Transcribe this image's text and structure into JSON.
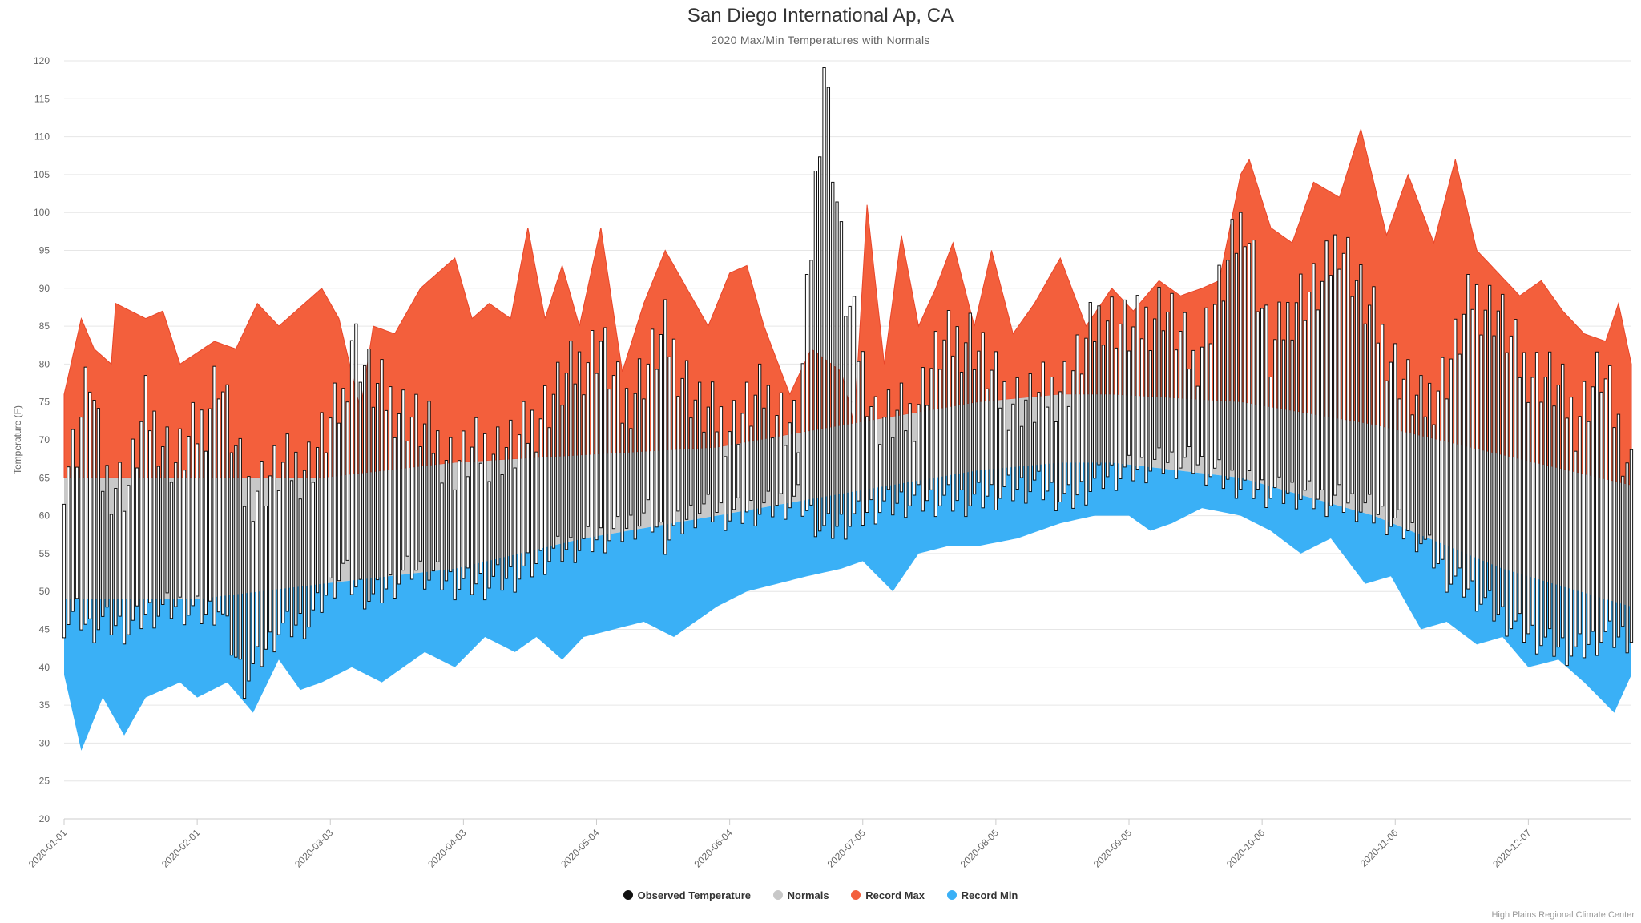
{
  "chart_data": {
    "type": "area",
    "title": "San Diego International Ap, CA",
    "subtitle": "2020 Max/Min Temperatures with Normals",
    "ylabel": "Temperature (F)",
    "xlabel": "",
    "ylim": [
      20,
      120
    ],
    "yticks": [
      20,
      25,
      30,
      35,
      40,
      45,
      50,
      55,
      60,
      65,
      70,
      75,
      80,
      85,
      90,
      95,
      100,
      105,
      110,
      115,
      120
    ],
    "xrange": [
      "2020-01-01",
      "2020-12-31"
    ],
    "xticks": [
      "2020-01-01",
      "2020-02-01",
      "2020-03-03",
      "2020-04-03",
      "2020-05-04",
      "2020-06-04",
      "2020-07-05",
      "2020-08-05",
      "2020-09-05",
      "2020-10-06",
      "2020-11-06",
      "2020-12-07"
    ],
    "grid": true,
    "legend_position": "bottom-center",
    "series": [
      {
        "name": "Record Max",
        "color": "#f35f3c",
        "points": [
          [
            "2020-01-01",
            76
          ],
          [
            "2020-01-05",
            86
          ],
          [
            "2020-01-08",
            82
          ],
          [
            "2020-01-12",
            80
          ],
          [
            "2020-01-13",
            88
          ],
          [
            "2020-01-20",
            86
          ],
          [
            "2020-01-24",
            87
          ],
          [
            "2020-01-28",
            80
          ],
          [
            "2020-02-05",
            83
          ],
          [
            "2020-02-10",
            82
          ],
          [
            "2020-02-15",
            88
          ],
          [
            "2020-02-20",
            85
          ],
          [
            "2020-02-24",
            87
          ],
          [
            "2020-03-01",
            90
          ],
          [
            "2020-03-05",
            86
          ],
          [
            "2020-03-10",
            74
          ],
          [
            "2020-03-13",
            85
          ],
          [
            "2020-03-18",
            84
          ],
          [
            "2020-03-24",
            90
          ],
          [
            "2020-04-01",
            94
          ],
          [
            "2020-04-05",
            86
          ],
          [
            "2020-04-09",
            88
          ],
          [
            "2020-04-14",
            86
          ],
          [
            "2020-04-18",
            98
          ],
          [
            "2020-04-22",
            86
          ],
          [
            "2020-04-26",
            93
          ],
          [
            "2020-04-30",
            85
          ],
          [
            "2020-05-05",
            98
          ],
          [
            "2020-05-10",
            79
          ],
          [
            "2020-05-15",
            88
          ],
          [
            "2020-05-20",
            95
          ],
          [
            "2020-05-25",
            90
          ],
          [
            "2020-05-30",
            85
          ],
          [
            "2020-06-04",
            92
          ],
          [
            "2020-06-08",
            93
          ],
          [
            "2020-06-12",
            85
          ],
          [
            "2020-06-18",
            76
          ],
          [
            "2020-06-23",
            82
          ],
          [
            "2020-06-30",
            79
          ],
          [
            "2020-07-03",
            72
          ],
          [
            "2020-07-06",
            101
          ],
          [
            "2020-07-10",
            80
          ],
          [
            "2020-07-14",
            97
          ],
          [
            "2020-07-18",
            85
          ],
          [
            "2020-07-22",
            90
          ],
          [
            "2020-07-26",
            96
          ],
          [
            "2020-07-31",
            85
          ],
          [
            "2020-08-04",
            95
          ],
          [
            "2020-08-09",
            84
          ],
          [
            "2020-08-14",
            88
          ],
          [
            "2020-08-20",
            94
          ],
          [
            "2020-08-26",
            85
          ],
          [
            "2020-09-01",
            90
          ],
          [
            "2020-09-06",
            87
          ],
          [
            "2020-09-12",
            91
          ],
          [
            "2020-09-17",
            89
          ],
          [
            "2020-09-22",
            90
          ],
          [
            "2020-09-26",
            91
          ],
          [
            "2020-10-01",
            105
          ],
          [
            "2020-10-03",
            107
          ],
          [
            "2020-10-08",
            98
          ],
          [
            "2020-10-13",
            96
          ],
          [
            "2020-10-18",
            104
          ],
          [
            "2020-10-24",
            102
          ],
          [
            "2020-10-29",
            111
          ],
          [
            "2020-11-04",
            97
          ],
          [
            "2020-11-09",
            105
          ],
          [
            "2020-11-15",
            96
          ],
          [
            "2020-11-20",
            107
          ],
          [
            "2020-11-25",
            95
          ],
          [
            "2020-11-30",
            92
          ],
          [
            "2020-12-05",
            89
          ],
          [
            "2020-12-10",
            91
          ],
          [
            "2020-12-15",
            87
          ],
          [
            "2020-12-20",
            84
          ],
          [
            "2020-12-25",
            83
          ],
          [
            "2020-12-28",
            88
          ],
          [
            "2020-12-31",
            80
          ]
        ]
      },
      {
        "name": "Normals",
        "color": "#c8c8c8",
        "points": [
          [
            "2020-01-01",
            65,
            49
          ],
          [
            "2020-02-01",
            65,
            49
          ],
          [
            "2020-03-01",
            65,
            51
          ],
          [
            "2020-04-01",
            67,
            53
          ],
          [
            "2020-05-01",
            68,
            57
          ],
          [
            "2020-06-01",
            69,
            60
          ],
          [
            "2020-07-01",
            72,
            63
          ],
          [
            "2020-08-01",
            75,
            66
          ],
          [
            "2020-08-20",
            76,
            67
          ],
          [
            "2020-09-01",
            76,
            67
          ],
          [
            "2020-10-01",
            75,
            65
          ],
          [
            "2020-11-01",
            72,
            60
          ],
          [
            "2020-12-01",
            68,
            53
          ],
          [
            "2020-12-31",
            64,
            48
          ]
        ]
      },
      {
        "name": "Record Min",
        "color": "#3ab0f6",
        "points": [
          [
            "2020-01-01",
            39
          ],
          [
            "2020-01-05",
            29
          ],
          [
            "2020-01-10",
            36
          ],
          [
            "2020-01-15",
            31
          ],
          [
            "2020-01-20",
            36
          ],
          [
            "2020-01-28",
            38
          ],
          [
            "2020-02-01",
            36
          ],
          [
            "2020-02-08",
            38
          ],
          [
            "2020-02-14",
            34
          ],
          [
            "2020-02-20",
            41
          ],
          [
            "2020-02-25",
            37
          ],
          [
            "2020-03-01",
            38
          ],
          [
            "2020-03-08",
            40
          ],
          [
            "2020-03-15",
            38
          ],
          [
            "2020-03-25",
            42
          ],
          [
            "2020-04-01",
            40
          ],
          [
            "2020-04-08",
            44
          ],
          [
            "2020-04-15",
            42
          ],
          [
            "2020-04-20",
            44
          ],
          [
            "2020-04-26",
            41
          ],
          [
            "2020-05-01",
            44
          ],
          [
            "2020-05-08",
            45
          ],
          [
            "2020-05-15",
            46
          ],
          [
            "2020-05-22",
            44
          ],
          [
            "2020-06-01",
            48
          ],
          [
            "2020-06-08",
            50
          ],
          [
            "2020-06-15",
            51
          ],
          [
            "2020-06-22",
            52
          ],
          [
            "2020-06-30",
            53
          ],
          [
            "2020-07-05",
            54
          ],
          [
            "2020-07-12",
            50
          ],
          [
            "2020-07-18",
            55
          ],
          [
            "2020-07-25",
            56
          ],
          [
            "2020-08-01",
            56
          ],
          [
            "2020-08-10",
            57
          ],
          [
            "2020-08-20",
            59
          ],
          [
            "2020-08-28",
            60
          ],
          [
            "2020-09-05",
            60
          ],
          [
            "2020-09-10",
            58
          ],
          [
            "2020-09-15",
            59
          ],
          [
            "2020-09-22",
            61
          ],
          [
            "2020-10-01",
            60
          ],
          [
            "2020-10-08",
            58
          ],
          [
            "2020-10-15",
            55
          ],
          [
            "2020-10-22",
            57
          ],
          [
            "2020-10-30",
            51
          ],
          [
            "2020-11-05",
            52
          ],
          [
            "2020-11-12",
            45
          ],
          [
            "2020-11-18",
            46
          ],
          [
            "2020-11-25",
            43
          ],
          [
            "2020-12-01",
            44
          ],
          [
            "2020-12-07",
            40
          ],
          [
            "2020-12-14",
            41
          ],
          [
            "2020-12-20",
            38
          ],
          [
            "2020-12-27",
            34
          ],
          [
            "2020-12-31",
            39
          ]
        ]
      },
      {
        "name": "Observed Temperature",
        "color": "#111111",
        "points": [
          [
            "2020-01-01",
            66,
            46
          ],
          [
            "2020-01-04",
            70,
            47
          ],
          [
            "2020-01-07",
            79,
            45
          ],
          [
            "2020-01-10",
            65,
            46
          ],
          [
            "2020-01-16",
            64,
            45
          ],
          [
            "2020-01-20",
            74,
            47
          ],
          [
            "2020-01-27",
            67,
            48
          ],
          [
            "2020-02-03",
            73,
            47
          ],
          [
            "2020-02-06",
            79,
            48
          ],
          [
            "2020-02-12",
            63,
            38
          ],
          [
            "2020-02-20",
            66,
            45
          ],
          [
            "2020-02-27",
            67,
            46
          ],
          [
            "2020-03-06",
            75,
            53
          ],
          [
            "2020-03-08",
            84,
            51
          ],
          [
            "2020-03-13",
            77,
            49
          ],
          [
            "2020-03-22",
            73,
            53
          ],
          [
            "2020-04-01",
            67,
            51
          ],
          [
            "2020-04-08",
            69,
            51
          ],
          [
            "2020-04-15",
            69,
            52
          ],
          [
            "2020-04-24",
            76,
            55
          ],
          [
            "2020-05-05",
            83,
            57
          ],
          [
            "2020-05-10",
            74,
            58
          ],
          [
            "2020-05-16",
            80,
            60
          ],
          [
            "2020-05-20",
            84,
            57
          ],
          [
            "2020-05-28",
            74,
            61
          ],
          [
            "2020-06-04",
            72,
            60
          ],
          [
            "2020-06-12",
            76,
            61
          ],
          [
            "2020-06-20",
            71,
            62
          ],
          [
            "2020-06-26",
            120,
            58
          ],
          [
            "2020-07-01",
            89,
            59
          ],
          [
            "2020-07-08",
            73,
            61
          ],
          [
            "2020-07-16",
            73,
            62
          ],
          [
            "2020-07-23",
            82,
            62
          ],
          [
            "2020-07-30",
            84,
            62
          ],
          [
            "2020-08-06",
            76,
            63
          ],
          [
            "2020-08-14",
            75,
            64
          ],
          [
            "2020-08-22",
            78,
            62
          ],
          [
            "2020-08-30",
            87,
            65
          ],
          [
            "2020-09-06",
            84,
            66
          ],
          [
            "2020-09-13",
            88,
            67
          ],
          [
            "2020-09-20",
            80,
            67
          ],
          [
            "2020-09-27",
            91,
            65
          ],
          [
            "2020-10-02",
            100,
            64
          ],
          [
            "2020-10-08",
            81,
            63
          ],
          [
            "2020-10-14",
            89,
            63
          ],
          [
            "2020-10-20",
            90,
            62
          ],
          [
            "2020-10-24",
            97,
            62
          ],
          [
            "2020-10-30",
            88,
            61
          ],
          [
            "2020-11-06",
            80,
            59
          ],
          [
            "2020-11-12",
            74,
            57
          ],
          [
            "2020-11-18",
            79,
            52
          ],
          [
            "2020-11-24",
            89,
            50
          ],
          [
            "2020-11-30",
            87,
            47
          ],
          [
            "2020-12-05",
            80,
            45
          ],
          [
            "2020-12-12",
            78,
            43
          ],
          [
            "2020-12-18",
            73,
            42
          ],
          [
            "2020-12-24",
            79,
            44
          ],
          [
            "2020-12-31",
            66,
            44
          ]
        ]
      }
    ]
  },
  "legend": [
    {
      "label": "Observed Temperature",
      "color": "#111111"
    },
    {
      "label": "Normals",
      "color": "#c8c8c8"
    },
    {
      "label": "Record Max",
      "color": "#f35f3c"
    },
    {
      "label": "Record Min",
      "color": "#3ab0f6"
    }
  ],
  "credit": "High Plains Regional Climate Center"
}
